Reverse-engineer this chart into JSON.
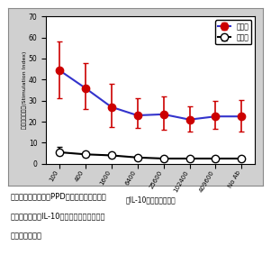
{
  "x_labels": [
    "100",
    "400",
    "1600",
    "6400",
    "25600",
    "102400",
    "409600",
    "No Ab"
  ],
  "infected_y": [
    44.5,
    36.0,
    27.0,
    23.0,
    23.5,
    21.0,
    22.5,
    22.5
  ],
  "infected_yerr_upper": [
    13.5,
    12.0,
    11.0,
    8.0,
    8.5,
    6.5,
    7.5,
    8.0
  ],
  "infected_yerr_lower": [
    13.5,
    10.0,
    9.5,
    6.0,
    7.5,
    5.5,
    6.0,
    7.0
  ],
  "healthy_y": [
    5.5,
    4.5,
    4.0,
    3.0,
    2.5,
    2.5,
    2.5,
    2.5
  ],
  "healthy_yerr_upper": [
    2.5,
    1.0,
    1.0,
    0.5,
    0.5,
    0.5,
    0.5,
    0.5
  ],
  "healthy_yerr_lower": [
    1.5,
    1.0,
    1.0,
    0.5,
    0.5,
    0.5,
    0.5,
    0.5
  ],
  "ylim": [
    0,
    70
  ],
  "yticks": [
    0,
    10,
    20,
    30,
    40,
    50,
    60,
    70
  ],
  "ylabel": "細胞増殖の程度(Stimulation Index)",
  "xlabel": "抗IL-10抗体の希釈倍率",
  "infected_color": "#cc0000",
  "infected_line_color": "#3333cc",
  "healthy_color": "#000000",
  "legend_infected": "感染牛",
  "legend_healthy": "健康牛",
  "outer_bg": "#d0d0d0",
  "plot_bg": "#ffffff"
}
